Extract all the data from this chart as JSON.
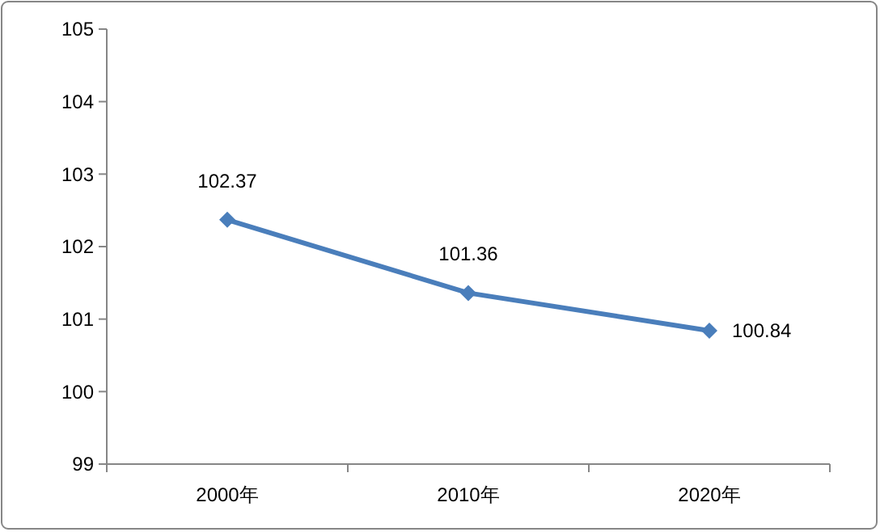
{
  "chart_data": {
    "type": "line",
    "categories": [
      "2000年",
      "2010年",
      "2020年"
    ],
    "series": [
      {
        "color": "#4a7ebb",
        "values": [
          102.37,
          101.36,
          100.84
        ]
      }
    ],
    "ylim": [
      99,
      105
    ],
    "yticks": [
      99,
      100,
      101,
      102,
      103,
      104,
      105
    ],
    "grid": false,
    "marker": "diamond",
    "line_style": "solid",
    "data_labels": true
  }
}
